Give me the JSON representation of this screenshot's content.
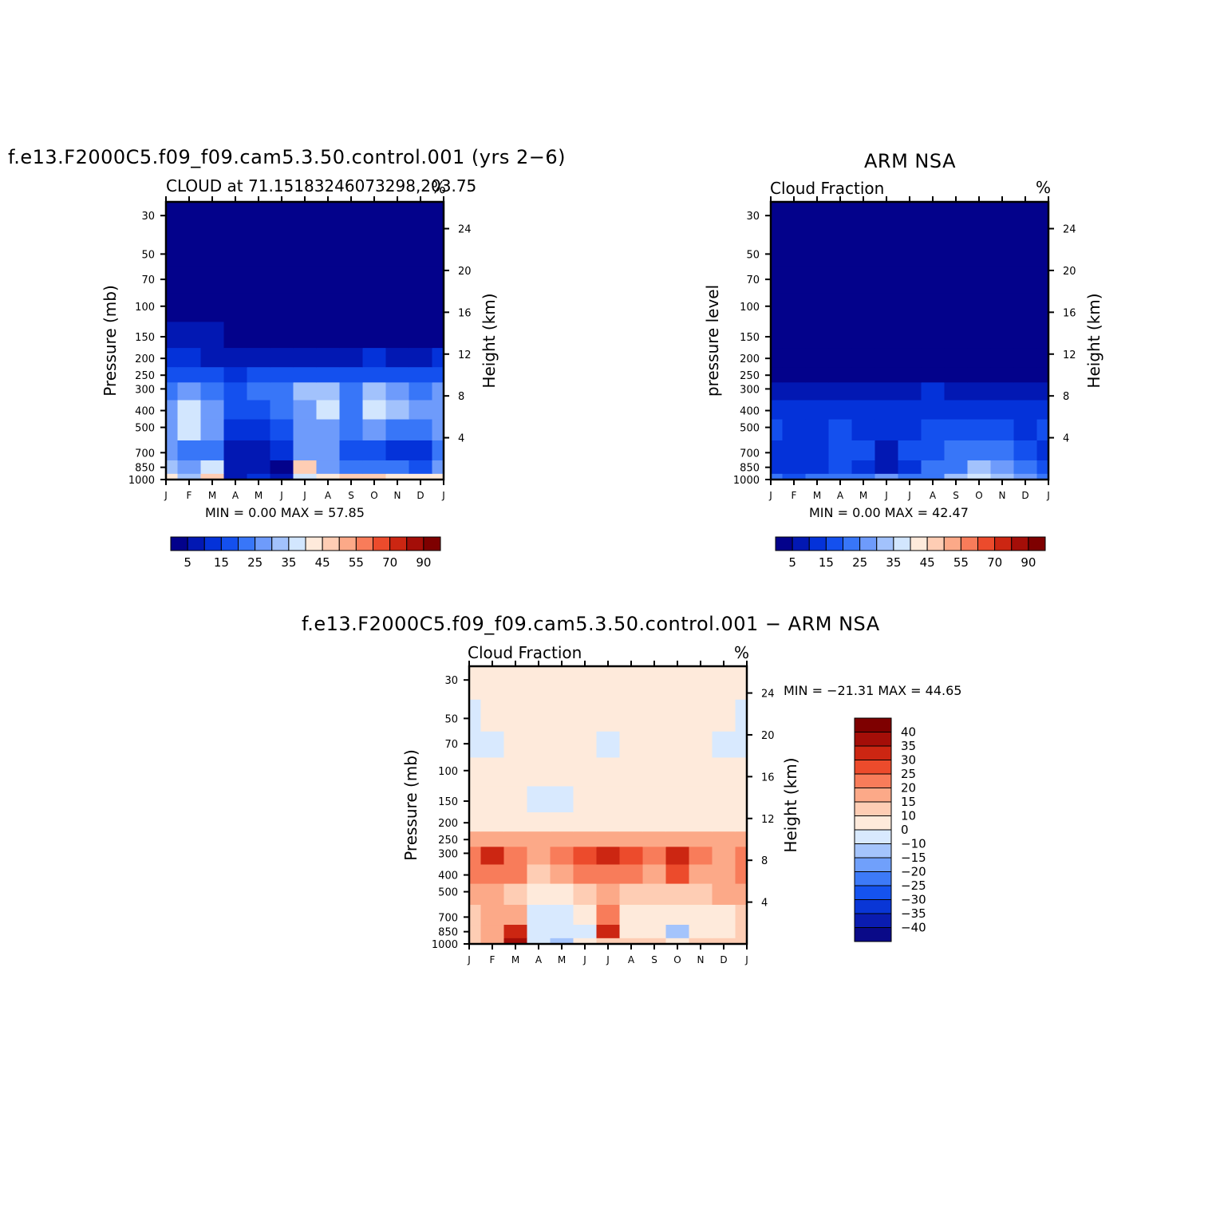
{
  "panels": [
    {
      "id": "model",
      "title": "f.e13.F2000C5.f09_f09.cam5.3.50.control.001 (yrs 2−6)",
      "left_label": "CLOUD at 71.15183246073298,203.75",
      "right_label": "%",
      "y_label_left": "Pressure (mb)",
      "y_label_right": "Height (km)",
      "min_max": "MIN =    0.00  MAX =   57.85"
    },
    {
      "id": "obs",
      "title": "ARM NSA",
      "left_label": "Cloud Fraction",
      "right_label": "%",
      "y_label_left": "pressure level",
      "y_label_right": "Height (km)",
      "min_max": "MIN =    0.00  MAX =   42.47"
    },
    {
      "id": "diff",
      "title": "f.e13.F2000C5.f09_f09.cam5.3.50.control.001 − ARM NSA",
      "left_label": "Cloud Fraction",
      "right_label": "%",
      "y_label_left": "Pressure (mb)",
      "y_label_right": "Height (km)",
      "min_max": "MIN = −21.31  MAX =   44.65"
    }
  ],
  "chart_data": [
    {
      "type": "heatmap",
      "panel": "model",
      "x_tick_labels": [
        "J",
        "F",
        "M",
        "A",
        "M",
        "J",
        "J",
        "A",
        "S",
        "O",
        "N",
        "D",
        "J"
      ],
      "y_pressure_ticks_mb": [
        30,
        50,
        70,
        100,
        150,
        200,
        250,
        300,
        400,
        500,
        700,
        850,
        1000
      ],
      "y_height_ticks_km": [
        24,
        20,
        16,
        12,
        8,
        4
      ],
      "colorbar_labels": [
        "5",
        "15",
        "25",
        "35",
        "45",
        "55",
        "70",
        "90"
      ],
      "levels": [
        5,
        10,
        15,
        20,
        25,
        30,
        35,
        40,
        45,
        50,
        55,
        60,
        70,
        80,
        90
      ],
      "min": 0.0,
      "max": 57.85,
      "p_rows_mb": [
        1000,
        850,
        700,
        500,
        400,
        300,
        250,
        200,
        150,
        100,
        70,
        50,
        30
      ],
      "values": [
        [
          40,
          30,
          45,
          8,
          12,
          6,
          35,
          40,
          45,
          45,
          42,
          40,
          40
        ],
        [
          30,
          25,
          35,
          7,
          5,
          3,
          45,
          25,
          20,
          20,
          20,
          15,
          25
        ],
        [
          25,
          22,
          20,
          8,
          6,
          10,
          25,
          28,
          15,
          15,
          12,
          12,
          20
        ],
        [
          26,
          38,
          26,
          12,
          10,
          18,
          25,
          26,
          22,
          25,
          24,
          22,
          26
        ],
        [
          26,
          37,
          26,
          16,
          18,
          20,
          28,
          36,
          24,
          37,
          30,
          26,
          28
        ],
        [
          24,
          27,
          24,
          18,
          20,
          22,
          32,
          30,
          24,
          30,
          26,
          24,
          26
        ],
        [
          16,
          16,
          15,
          14,
          16,
          16,
          18,
          18,
          18,
          18,
          18,
          16,
          16
        ],
        [
          10,
          10,
          9,
          7,
          8,
          8,
          8,
          9,
          9,
          10,
          9,
          8,
          10
        ],
        [
          5,
          6,
          5,
          3,
          3,
          3,
          3,
          3,
          3,
          3,
          3,
          3,
          4
        ],
        [
          1,
          1,
          1,
          1,
          1,
          1,
          1,
          1,
          1,
          1,
          1,
          1,
          1
        ],
        [
          0,
          0,
          0,
          0,
          0,
          0,
          0,
          0,
          0,
          0,
          0,
          0,
          0
        ],
        [
          0,
          0,
          0,
          0,
          0,
          0,
          0,
          0,
          0,
          0,
          0,
          0,
          0
        ],
        [
          0,
          0,
          0,
          0,
          0,
          0,
          0,
          0,
          0,
          0,
          0,
          0,
          0
        ]
      ]
    },
    {
      "type": "heatmap",
      "panel": "obs",
      "x_tick_labels": [
        "J",
        "F",
        "M",
        "A",
        "M",
        "J",
        "J",
        "A",
        "S",
        "O",
        "N",
        "D",
        "J"
      ],
      "y_pressure_ticks_mb": [
        30,
        50,
        70,
        100,
        150,
        200,
        250,
        300,
        400,
        500,
        700,
        850,
        1000
      ],
      "y_height_ticks_km": [
        24,
        20,
        16,
        12,
        8,
        4
      ],
      "colorbar_labels": [
        "5",
        "15",
        "25",
        "35",
        "45",
        "55",
        "70",
        "90"
      ],
      "levels": [
        5,
        10,
        15,
        20,
        25,
        30,
        35,
        40,
        45,
        50,
        55,
        60,
        70,
        80,
        90
      ],
      "min": 0.0,
      "max": 42.47,
      "p_rows_mb": [
        1000,
        850,
        700,
        500,
        400,
        300,
        250,
        200,
        150,
        100,
        70,
        50,
        30
      ],
      "values": [
        [
          22,
          18,
          20,
          24,
          22,
          26,
          20,
          24,
          30,
          38,
          34,
          26,
          24
        ],
        [
          14,
          12,
          14,
          16,
          14,
          8,
          14,
          20,
          24,
          30,
          26,
          20,
          16
        ],
        [
          12,
          10,
          12,
          16,
          18,
          8,
          16,
          18,
          20,
          22,
          20,
          16,
          14
        ],
        [
          16,
          12,
          14,
          18,
          12,
          10,
          14,
          18,
          18,
          18,
          16,
          14,
          16
        ],
        [
          12,
          12,
          12,
          14,
          12,
          12,
          14,
          14,
          14,
          14,
          14,
          14,
          12
        ],
        [
          8,
          6,
          6,
          6,
          7,
          8,
          8,
          10,
          8,
          7,
          8,
          8,
          8
        ],
        [
          3,
          3,
          3,
          3,
          3,
          3,
          3,
          3,
          3,
          3,
          3,
          3,
          3
        ],
        [
          1,
          1,
          1,
          1,
          1,
          1,
          1,
          1,
          1,
          1,
          1,
          1,
          1
        ],
        [
          0,
          0,
          0,
          0,
          0,
          0,
          0,
          0,
          0,
          0,
          0,
          0,
          0
        ],
        [
          0,
          0,
          0,
          0,
          0,
          0,
          0,
          0,
          0,
          0,
          0,
          0,
          0
        ],
        [
          0,
          0,
          0,
          0,
          0,
          0,
          0,
          0,
          0,
          0,
          0,
          0,
          0
        ],
        [
          0,
          0,
          0,
          0,
          0,
          0,
          0,
          0,
          0,
          0,
          0,
          0,
          0
        ],
        [
          0,
          0,
          0,
          0,
          0,
          0,
          0,
          0,
          0,
          0,
          0,
          0,
          0
        ]
      ]
    },
    {
      "type": "heatmap",
      "panel": "diff",
      "x_tick_labels": [
        "J",
        "F",
        "M",
        "A",
        "M",
        "J",
        "J",
        "A",
        "S",
        "O",
        "N",
        "D",
        "J"
      ],
      "y_pressure_ticks_mb": [
        30,
        50,
        70,
        100,
        150,
        200,
        250,
        300,
        400,
        500,
        700,
        850,
        1000
      ],
      "y_height_ticks_km": [
        24,
        20,
        16,
        12,
        8,
        4
      ],
      "colorbar_labels": [
        "40",
        "35",
        "30",
        "25",
        "20",
        "15",
        "10",
        "0",
        "−10",
        "−15",
        "−20",
        "−25",
        "−30",
        "−35",
        "−40"
      ],
      "levels": [
        -40,
        -35,
        -30,
        -25,
        -20,
        -15,
        -10,
        0,
        10,
        15,
        20,
        25,
        30,
        35,
        40
      ],
      "min": -21.31,
      "max": 44.65,
      "p_rows_mb": [
        1000,
        850,
        700,
        500,
        400,
        300,
        250,
        200,
        150,
        100,
        70,
        50,
        30
      ],
      "values": [
        [
          14,
          16,
          36,
          -6,
          -14,
          4,
          10,
          14,
          10,
          8,
          12,
          14,
          14
        ],
        [
          12,
          18,
          30,
          -8,
          -4,
          -4,
          32,
          6,
          2,
          -12,
          2,
          4,
          12
        ],
        [
          12,
          16,
          18,
          -4,
          -2,
          6,
          24,
          8,
          4,
          2,
          4,
          4,
          10
        ],
        [
          16,
          16,
          14,
          6,
          8,
          14,
          18,
          12,
          10,
          10,
          12,
          16,
          16
        ],
        [
          22,
          24,
          20,
          12,
          16,
          20,
          24,
          22,
          18,
          26,
          18,
          16,
          20
        ],
        [
          20,
          30,
          20,
          18,
          22,
          26,
          30,
          26,
          24,
          34,
          22,
          18,
          24
        ],
        [
          16,
          16,
          16,
          16,
          18,
          18,
          18,
          18,
          18,
          18,
          18,
          18,
          16
        ],
        [
          8,
          8,
          8,
          6,
          6,
          6,
          6,
          6,
          6,
          6,
          6,
          6,
          8
        ],
        [
          4,
          4,
          4,
          -2,
          -2,
          2,
          2,
          2,
          2,
          2,
          2,
          2,
          2
        ],
        [
          2,
          2,
          2,
          2,
          2,
          2,
          2,
          2,
          2,
          2,
          2,
          2,
          2
        ],
        [
          -2,
          -2,
          4,
          4,
          4,
          4,
          -2,
          4,
          4,
          4,
          4,
          -2,
          -2
        ],
        [
          -2,
          4,
          4,
          4,
          4,
          4,
          4,
          4,
          4,
          4,
          4,
          4,
          -2
        ],
        [
          4,
          4,
          4,
          4,
          4,
          4,
          4,
          4,
          4,
          4,
          4,
          4,
          4
        ]
      ]
    }
  ],
  "colors": {
    "model_obs_scale": [
      "#03028b",
      "#0218b3",
      "#0432d9",
      "#1450ee",
      "#3876f8",
      "#6e9bfb",
      "#a2c2fc",
      "#d2e6fe",
      "#feeadb",
      "#fecdb4",
      "#fca988",
      "#f87c5a",
      "#ec4b2c",
      "#cc2612",
      "#a40e08",
      "#7e0000"
    ],
    "diff_scale": [
      "#0a0a88",
      "#0a1cb0",
      "#0936d6",
      "#1553ef",
      "#3d7af8",
      "#70a0fb",
      "#a4c4fc",
      "#d8e9fe",
      "#feeadb",
      "#fecdb4",
      "#fca988",
      "#f87c5a",
      "#ec4b2c",
      "#cc2612",
      "#a40e08",
      "#7e0000"
    ]
  }
}
